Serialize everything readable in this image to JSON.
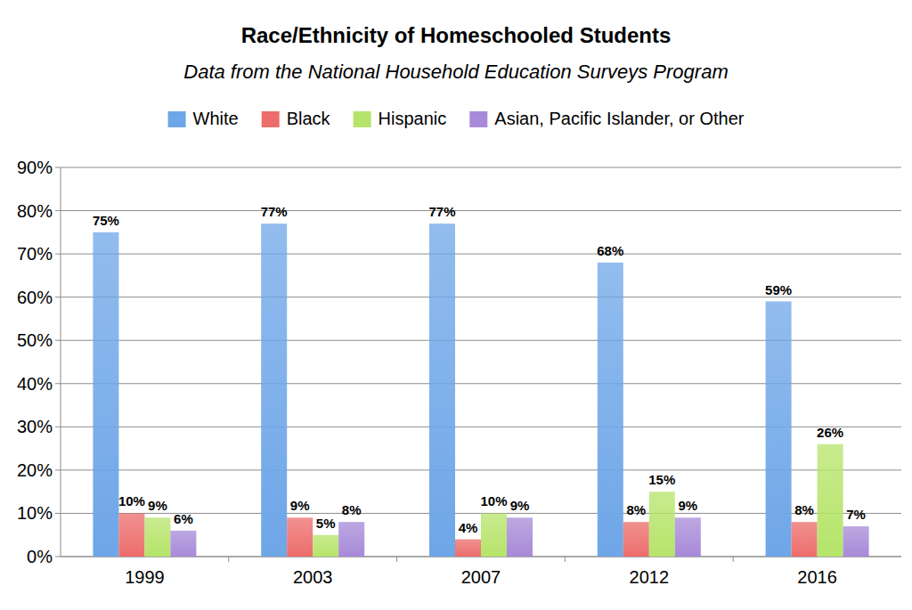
{
  "chart_data": {
    "type": "bar",
    "title": "Race/Ethnicity of Homeschooled Students",
    "subtitle": "Data from the National Household Education Surveys Program",
    "categories": [
      "1999",
      "2003",
      "2007",
      "2012",
      "2016"
    ],
    "series": [
      {
        "name": "White",
        "color": "#6ea6e8",
        "values": [
          75,
          77,
          77,
          68,
          59
        ],
        "value_labels": [
          "75%",
          "77%",
          "77%",
          "68%",
          "59%"
        ]
      },
      {
        "name": "Black",
        "color": "#ec6d6b",
        "values": [
          10,
          9,
          4,
          8,
          8
        ],
        "value_labels": [
          "10%",
          "9%",
          "4%",
          "8%",
          "8%"
        ]
      },
      {
        "name": "Hispanic",
        "color": "#b6e46a",
        "values": [
          9,
          5,
          10,
          15,
          26
        ],
        "value_labels": [
          "9%",
          "5%",
          "10%",
          "15%",
          "26%"
        ]
      },
      {
        "name": "Asian, Pacific Islander, or Other",
        "color": "#a78ad8",
        "values": [
          6,
          8,
          9,
          9,
          7
        ],
        "value_labels": [
          "6%",
          "8%",
          "9%",
          "9%",
          "7%"
        ]
      }
    ],
    "ylim": [
      0,
      90
    ],
    "yticks": [
      {
        "value": 0,
        "label": "0%"
      },
      {
        "value": 10,
        "label": "10%"
      },
      {
        "value": 20,
        "label": "20%"
      },
      {
        "value": 30,
        "label": "30%"
      },
      {
        "value": 40,
        "label": "40%"
      },
      {
        "value": 50,
        "label": "50%"
      },
      {
        "value": 60,
        "label": "60%"
      },
      {
        "value": 70,
        "label": "70%"
      },
      {
        "value": 80,
        "label": "80%"
      },
      {
        "value": 90,
        "label": "90%"
      }
    ],
    "grid": true,
    "legend": "top",
    "data_labels": true
  }
}
